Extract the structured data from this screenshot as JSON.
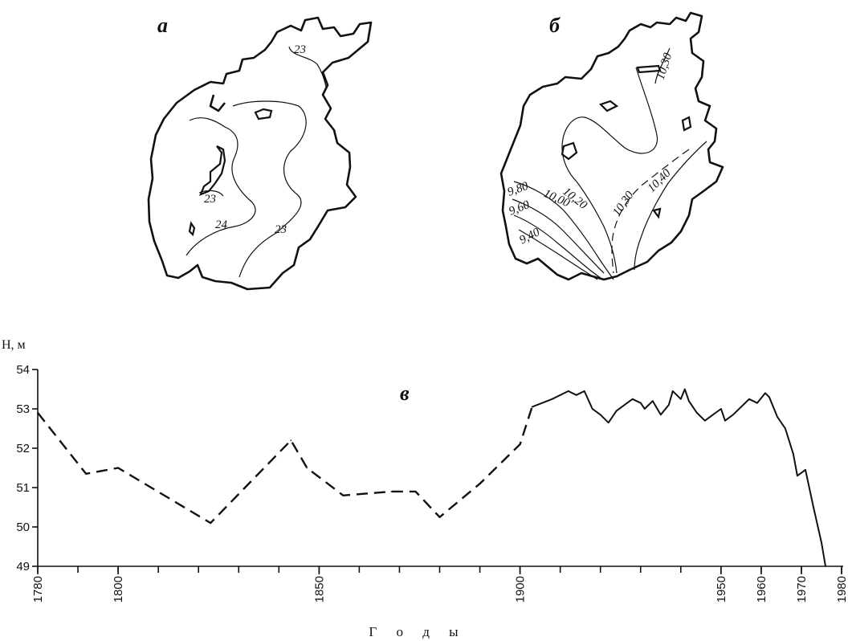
{
  "maps": {
    "a": {
      "letter": "а",
      "isolines": [
        "23",
        "23",
        "24",
        "23"
      ]
    },
    "b": {
      "letter": "б",
      "isolines": [
        "10,30",
        "10,20",
        "10,00",
        "9,80",
        "9,60",
        "9,40",
        "10,30",
        "10,40"
      ]
    }
  },
  "chart_data": {
    "type": "line",
    "panel_letter": "в",
    "xlabel": "Г о д ы",
    "ylabel": "H, м",
    "xlim": [
      1780,
      1980
    ],
    "ylim": [
      49,
      54
    ],
    "x_tick_labels": [
      "1780",
      "1800",
      "1850",
      "1900",
      "1950",
      "1960",
      "1970",
      "1980"
    ],
    "y_tick_labels": [
      "49",
      "50",
      "51",
      "52",
      "53",
      "54"
    ],
    "series": [
      {
        "style": "dashed",
        "points": [
          [
            1780,
            52.9
          ],
          [
            1792,
            51.35
          ],
          [
            1800,
            51.5
          ],
          [
            1823,
            50.1
          ],
          [
            1843,
            52.2
          ],
          [
            1847,
            51.5
          ],
          [
            1856,
            50.8
          ],
          [
            1868,
            50.9
          ],
          [
            1874,
            50.9
          ],
          [
            1880,
            50.25
          ],
          [
            1890,
            51.1
          ],
          [
            1900,
            52.1
          ],
          [
            1903,
            53.05
          ]
        ]
      },
      {
        "style": "solid",
        "points": [
          [
            1903,
            53.05
          ],
          [
            1908,
            53.25
          ],
          [
            1912,
            53.45
          ],
          [
            1914,
            53.35
          ],
          [
            1916,
            53.45
          ],
          [
            1918,
            53.0
          ],
          [
            1920,
            52.85
          ],
          [
            1922,
            52.65
          ],
          [
            1924,
            52.95
          ],
          [
            1926,
            53.1
          ],
          [
            1928,
            53.25
          ],
          [
            1930,
            53.15
          ],
          [
            1931,
            53.0
          ],
          [
            1933,
            53.2
          ],
          [
            1935,
            52.85
          ],
          [
            1937,
            53.1
          ],
          [
            1938,
            53.45
          ],
          [
            1940,
            53.25
          ],
          [
            1941,
            53.5
          ],
          [
            1942,
            53.2
          ],
          [
            1944,
            52.9
          ],
          [
            1946,
            52.7
          ],
          [
            1948,
            52.85
          ],
          [
            1950,
            53.0
          ],
          [
            1951,
            52.7
          ],
          [
            1953,
            52.85
          ],
          [
            1955,
            53.05
          ],
          [
            1957,
            53.25
          ],
          [
            1959,
            53.15
          ],
          [
            1961,
            53.4
          ],
          [
            1962,
            53.3
          ],
          [
            1964,
            52.8
          ],
          [
            1966,
            52.5
          ],
          [
            1968,
            51.85
          ],
          [
            1969,
            51.3
          ],
          [
            1971,
            51.45
          ],
          [
            1973,
            50.5
          ],
          [
            1975,
            49.6
          ],
          [
            1976,
            49.0
          ]
        ]
      }
    ]
  }
}
